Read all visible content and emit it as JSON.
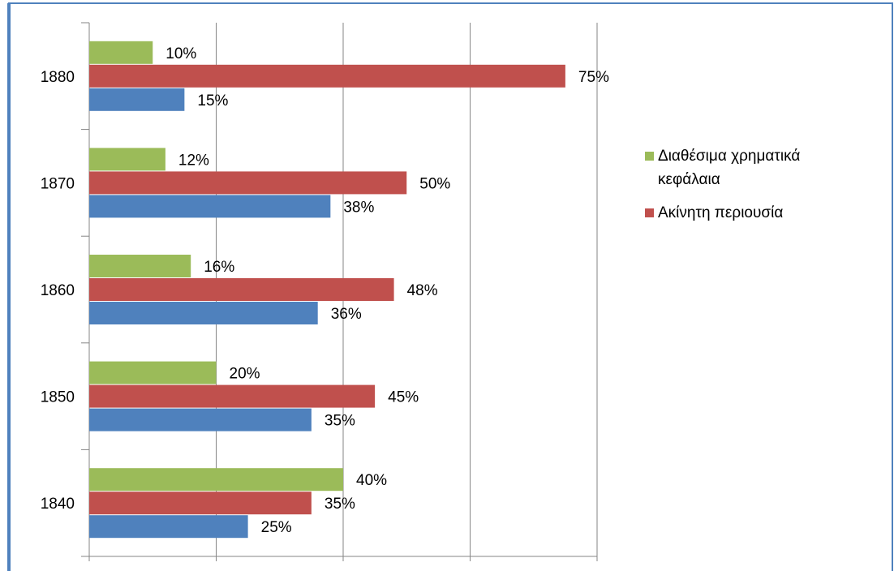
{
  "chart_data": {
    "type": "bar",
    "orientation": "horizontal",
    "categories": [
      "1840",
      "1850",
      "1860",
      "1870",
      "1880"
    ],
    "series": [
      {
        "name": "Διαθέσιμα χρηματικά κεφάλαια",
        "color": "#9bbb59",
        "values": [
          40,
          20,
          16,
          12,
          10
        ],
        "value_labels": [
          "40%",
          "20%",
          "16%",
          "12%",
          "10%"
        ]
      },
      {
        "name": "Ακίνητη περιουσία",
        "color": "#c0504d",
        "values": [
          35,
          45,
          48,
          50,
          75
        ],
        "value_labels": [
          "35%",
          "45%",
          "48%",
          "50%",
          "75%"
        ]
      },
      {
        "color": "#4f81bd",
        "values": [
          25,
          35,
          36,
          38,
          15
        ],
        "value_labels": [
          "25%",
          "35%",
          "36%",
          "38%",
          "15%"
        ]
      }
    ],
    "xlim": [
      0,
      80
    ],
    "xticks": [
      0,
      20,
      40,
      60,
      80
    ],
    "grid": true,
    "legend": "right"
  }
}
